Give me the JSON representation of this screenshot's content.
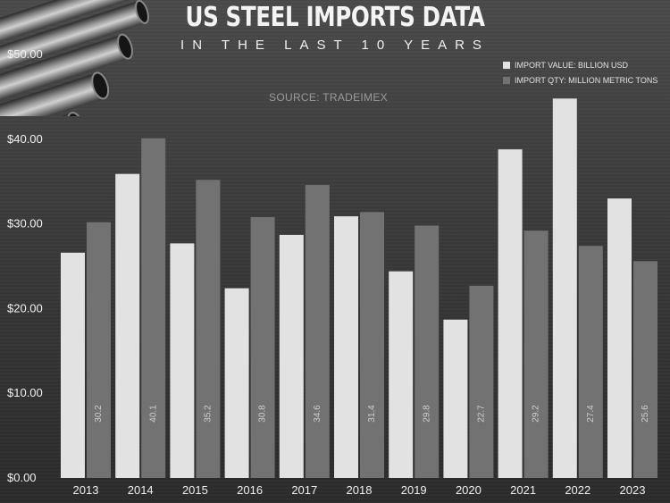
{
  "header": {
    "title": "US STEEL IMPORTS DATA",
    "subtitle": "IN THE LAST 10 YEARS",
    "source": "SOURCE: TRADEIMEX"
  },
  "colors": {
    "value_bar": "#e2e2e2",
    "qty_bar": "#727272",
    "qty_label": "#cfcfcf",
    "axis_text": "#f0f0f0"
  },
  "chart_data": {
    "type": "bar",
    "categories": [
      "2013",
      "2014",
      "2015",
      "2016",
      "2017",
      "2018",
      "2019",
      "2020",
      "2021",
      "2022",
      "2023"
    ],
    "series": [
      {
        "name": "IMPORT VALUE: BILLION USD",
        "values": [
          26.6,
          35.9,
          27.7,
          22.4,
          28.7,
          30.9,
          24.4,
          18.7,
          38.8,
          44.8,
          33.0
        ]
      },
      {
        "name": "IMPORT QTY: MILLION METRIC TONS",
        "values": [
          30.2,
          40.1,
          35.2,
          30.8,
          34.6,
          31.4,
          29.8,
          22.7,
          29.2,
          27.4,
          25.6
        ],
        "data_labels": [
          "30.2",
          "40.1",
          "35.2",
          "30.8",
          "34.6",
          "31.4",
          "29.8",
          "22.7",
          "29.2",
          "27.4",
          "25.6"
        ]
      }
    ],
    "yticks": [
      "$0.00",
      "$10.00",
      "$20.00",
      "$30.00",
      "$40.00",
      "$50.00"
    ],
    "ylim": [
      0,
      50
    ],
    "grid": false,
    "legend_position": "top-right"
  }
}
